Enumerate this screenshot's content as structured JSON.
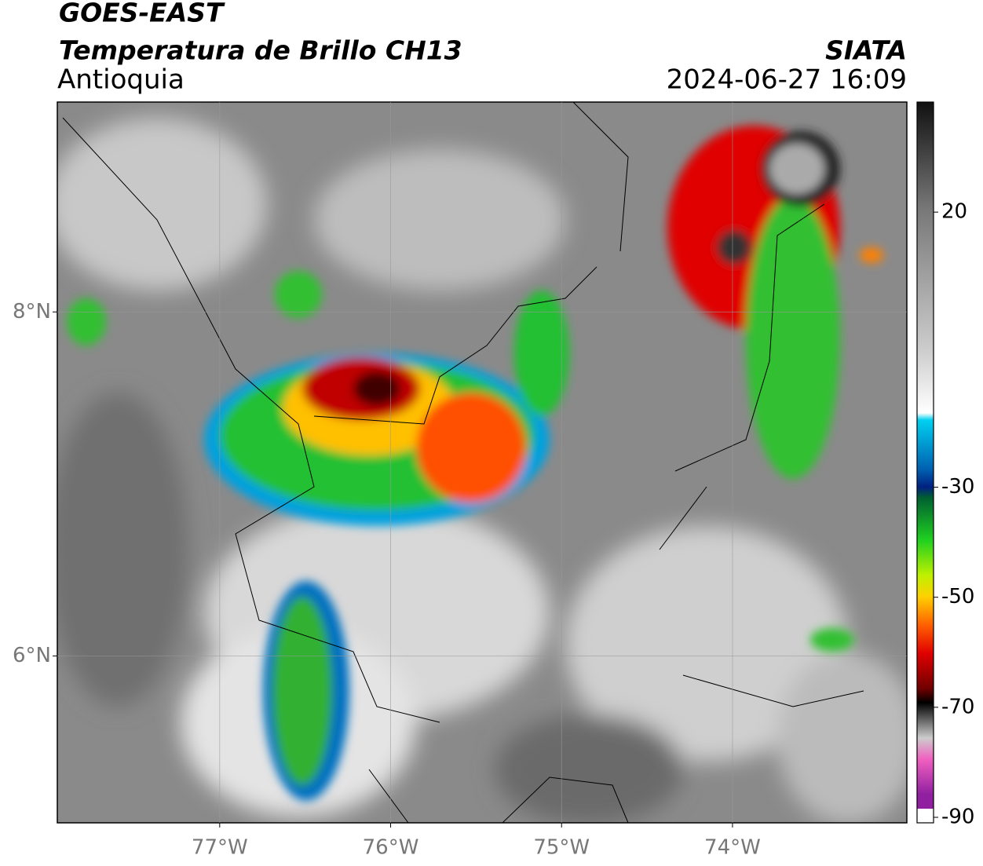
{
  "header": {
    "title": "GOES-EAST",
    "subtitle": "Temperatura de Brillo CH13",
    "region": "Antioquia",
    "source": "SIATA",
    "datetime": "2024-06-27 16:09"
  },
  "map": {
    "xlim": [
      -77.95,
      -72.98
    ],
    "ylim": [
      5.03,
      9.22
    ],
    "xticks": [
      {
        "value": -77,
        "label": "77°W"
      },
      {
        "value": -76,
        "label": "76°W"
      },
      {
        "value": -75,
        "label": "75°W"
      },
      {
        "value": -74,
        "label": "74°W"
      }
    ],
    "yticks": [
      {
        "value": 6,
        "label": "6°N"
      },
      {
        "value": 8,
        "label": "8°N"
      }
    ],
    "grid": true
  },
  "colorbar": {
    "clim": [
      -91,
      40
    ],
    "ticks": [
      20,
      -30,
      -50,
      -70,
      -90
    ]
  }
}
